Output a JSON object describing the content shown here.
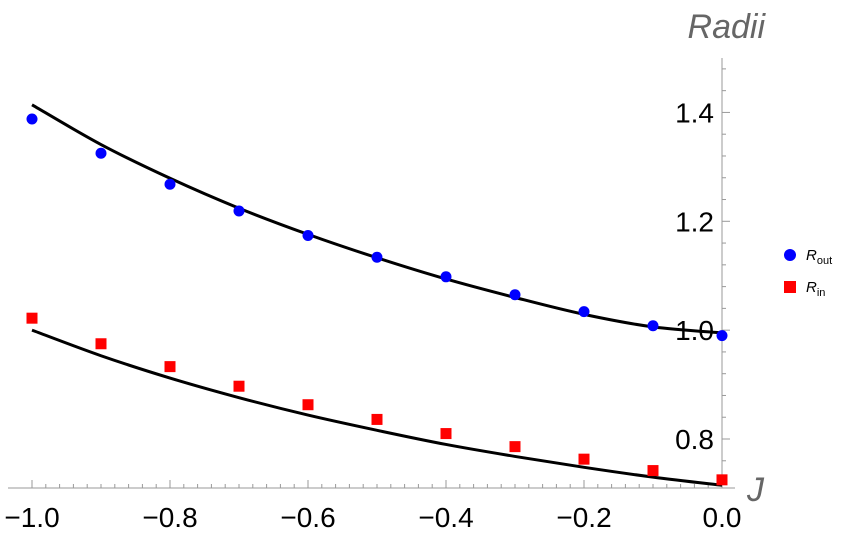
{
  "chart_data": {
    "type": "scatter",
    "xlabel": "J",
    "ylabel": "Radii",
    "xlim": [
      -1.0,
      0.0
    ],
    "ylim": [
      0.71,
      1.5
    ],
    "x_ticks": [
      "−1.0",
      "−0.8",
      "−0.6",
      "−0.4",
      "−0.2",
      "0.0"
    ],
    "y_ticks": [
      "0.8",
      "1.0",
      "1.2",
      "1.4"
    ],
    "grid": false,
    "legend_position": "right",
    "series": [
      {
        "name": "R",
        "name_sub": "out",
        "marker": "circle",
        "color": "#0000ff",
        "x": [
          -1.0,
          -0.9,
          -0.8,
          -0.7,
          -0.6,
          -0.5,
          -0.4,
          -0.3,
          -0.2,
          -0.1,
          0.0
        ],
        "y": [
          1.388,
          1.325,
          1.268,
          1.219,
          1.174,
          1.134,
          1.098,
          1.065,
          1.034,
          1.008,
          0.99
        ]
      },
      {
        "name": "R",
        "name_sub": "in",
        "marker": "square",
        "color": "#ff0000",
        "x": [
          -1.0,
          -0.9,
          -0.8,
          -0.7,
          -0.6,
          -0.5,
          -0.4,
          -0.3,
          -0.2,
          -0.1,
          0.0
        ],
        "y": [
          1.022,
          0.975,
          0.933,
          0.897,
          0.863,
          0.836,
          0.81,
          0.786,
          0.763,
          0.742,
          0.725
        ]
      }
    ],
    "curves": [
      {
        "color": "#000000",
        "x": [
          -1.0,
          -0.9,
          -0.8,
          -0.7,
          -0.6,
          -0.5,
          -0.4,
          -0.3,
          -0.2,
          -0.1,
          0.0
        ],
        "y": [
          1.414,
          1.341,
          1.279,
          1.224,
          1.176,
          1.133,
          1.094,
          1.06,
          1.029,
          1.006,
          0.995
        ]
      },
      {
        "color": "#000000",
        "x": [
          -1.0,
          -0.9,
          -0.8,
          -0.7,
          -0.6,
          -0.5,
          -0.4,
          -0.3,
          -0.2,
          -0.1,
          0.0
        ],
        "y": [
          1.0,
          0.953,
          0.912,
          0.876,
          0.844,
          0.816,
          0.79,
          0.768,
          0.748,
          0.73,
          0.715
        ]
      }
    ]
  }
}
